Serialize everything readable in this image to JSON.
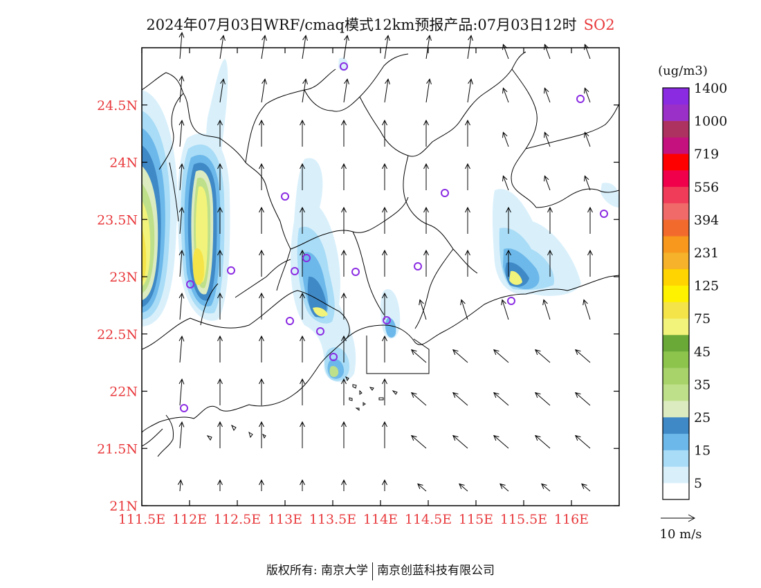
{
  "title": {
    "text": "2024年07月03日WRF/cmaq模式12km预报产品:07月03日12时",
    "species": "SO2"
  },
  "map": {
    "lat_ticks": [
      "24.5N",
      "24N",
      "23.5N",
      "23N",
      "22.5N",
      "22N",
      "21.5N",
      "21N"
    ],
    "lon_ticks": [
      "111.5E",
      "112E",
      "112.5E",
      "113E",
      "113.5E",
      "114E",
      "114.5E",
      "115E",
      "115.5E",
      "116E"
    ],
    "lat_range": [
      21,
      25
    ],
    "lon_range": [
      111.5,
      116.5
    ]
  },
  "colorbar": {
    "unit": "(ug/m3)",
    "colors": [
      "#ffffff",
      "#d9f0fb",
      "#a9dcf6",
      "#6cb8ea",
      "#3f89c7",
      "#dcebc0",
      "#bfe08a",
      "#a7d36a",
      "#8cc44c",
      "#6aa838",
      "#f2f37a",
      "#f5e34a",
      "#fff200",
      "#ffd400",
      "#f5b22a",
      "#f8981d",
      "#f26b2c",
      "#f06a6a",
      "#f03c58",
      "#f0004a",
      "#ff0000",
      "#c4117e",
      "#ad3260",
      "#9a30c8",
      "#8a2be2"
    ],
    "labels": [
      "5",
      "15",
      "25",
      "35",
      "45",
      "75",
      "125",
      "231",
      "394",
      "556",
      "719",
      "1000",
      "1400"
    ]
  },
  "wind_legend": {
    "label": "10 m/s"
  },
  "footer": {
    "left": "版权所有: 南京大学",
    "right": "南京创蓝科技有限公司"
  }
}
